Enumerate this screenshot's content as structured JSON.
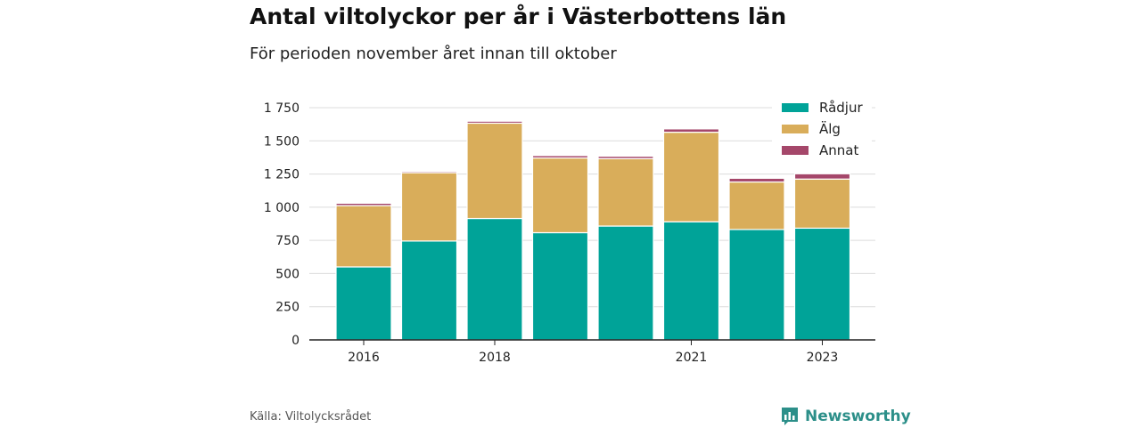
{
  "header": {
    "title": "Antal viltolyckor per år i Västerbottens län",
    "subtitle": "För perioden november året innan till oktober"
  },
  "footer": {
    "source": "Källa: Viltolycksrådet",
    "brand": "Newsworthy",
    "brand_color": "#2c8f89"
  },
  "chart_data": {
    "type": "bar",
    "stacked": true,
    "categories": [
      "2016",
      "2017",
      "2018",
      "2019",
      "2020",
      "2021",
      "2022",
      "2023"
    ],
    "x_tick_labels": [
      "2016",
      "",
      "2018",
      "",
      "",
      "2021",
      "",
      "2023"
    ],
    "series": [
      {
        "name": "Rådjur",
        "color": "#00a398",
        "values": [
          550,
          745,
          915,
          808,
          858,
          890,
          832,
          842
        ]
      },
      {
        "name": "Älg",
        "color": "#d9ad5a",
        "values": [
          462,
          515,
          718,
          563,
          508,
          675,
          358,
          370
        ]
      },
      {
        "name": "Annat",
        "color": "#a5476a",
        "values": [
          18,
          10,
          15,
          18,
          18,
          25,
          28,
          40
        ]
      }
    ],
    "ylim": [
      0,
      1750
    ],
    "y_ticks": [
      0,
      250,
      500,
      750,
      1000,
      1250,
      1500,
      1750
    ],
    "y_tick_labels": [
      "0",
      "250",
      "500",
      "750",
      "1 000",
      "1 250",
      "1 500",
      "1 750"
    ],
    "grid": true,
    "legend_position": "top-right"
  }
}
